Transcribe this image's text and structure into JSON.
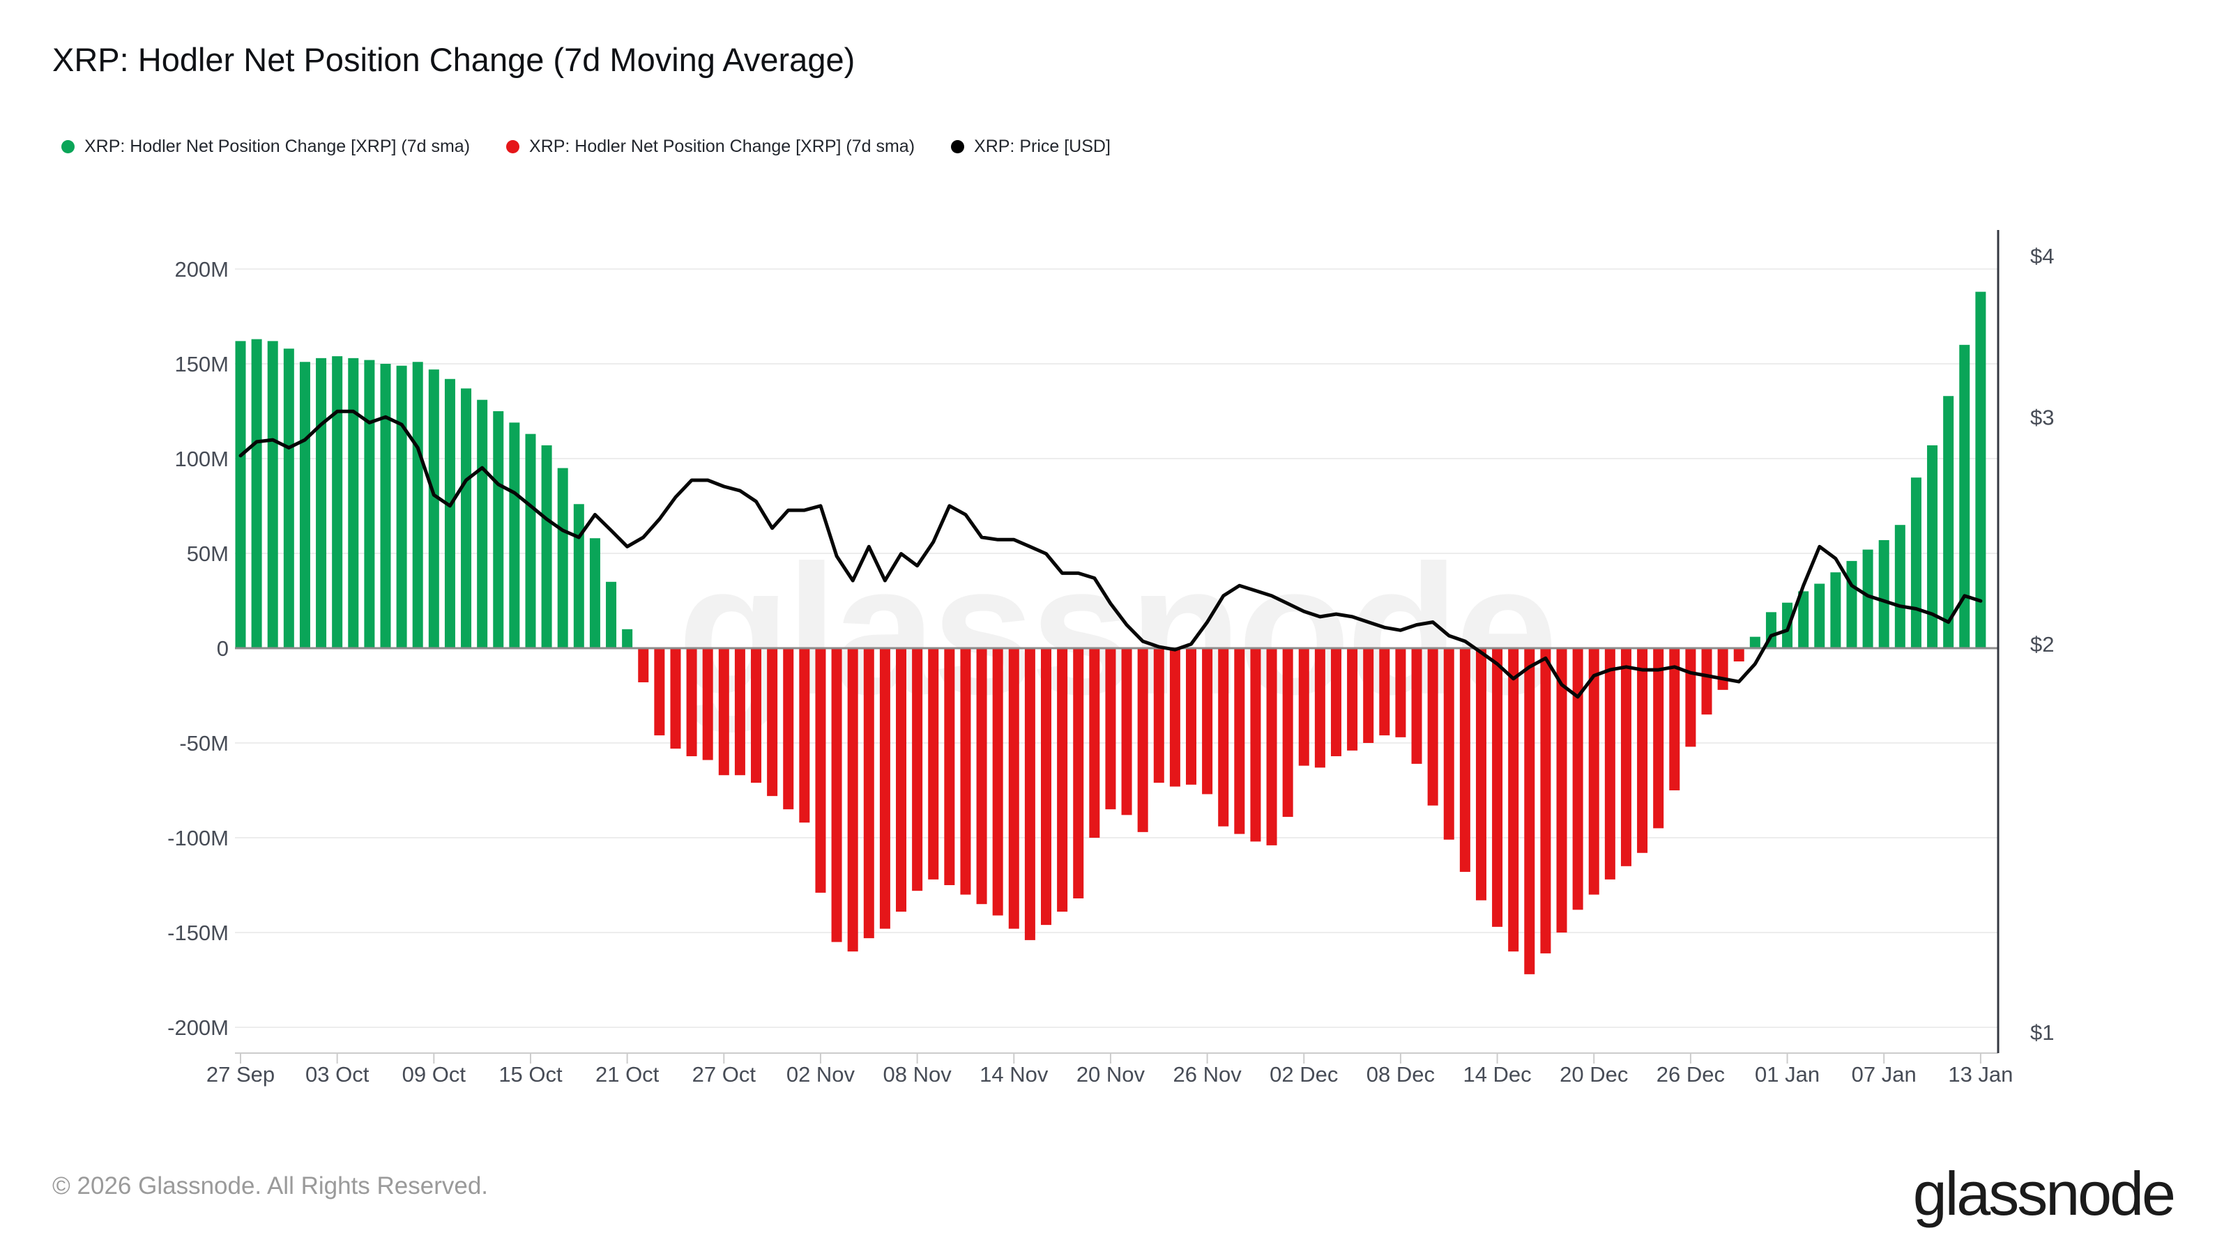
{
  "title": "XRP: Hodler Net Position Change (7d Moving Average)",
  "legend": [
    {
      "label": "XRP: Hodler Net Position Change [XRP] (7d sma)",
      "color": "#0aa558"
    },
    {
      "label": "XRP: Hodler Net Position Change [XRP] (7d sma)",
      "color": "#e51619"
    },
    {
      "label": "XRP: Price [USD]",
      "color": "#000000"
    }
  ],
  "watermark": "glassnode",
  "footer": {
    "copyright": "© 2026 Glassnode. All Rights Reserved.",
    "logo": "glassnode"
  },
  "chart_data": {
    "type": "bar+line",
    "title": "XRP: Hodler Net Position Change (7d Moving Average)",
    "x": [
      "27 Sep",
      "28 Sep",
      "29 Sep",
      "30 Sep",
      "01 Oct",
      "02 Oct",
      "03 Oct",
      "04 Oct",
      "05 Oct",
      "06 Oct",
      "07 Oct",
      "08 Oct",
      "09 Oct",
      "10 Oct",
      "11 Oct",
      "12 Oct",
      "13 Oct",
      "14 Oct",
      "15 Oct",
      "16 Oct",
      "17 Oct",
      "18 Oct",
      "19 Oct",
      "20 Oct",
      "21 Oct",
      "22 Oct",
      "23 Oct",
      "24 Oct",
      "25 Oct",
      "26 Oct",
      "27 Oct",
      "28 Oct",
      "29 Oct",
      "30 Oct",
      "31 Oct",
      "01 Nov",
      "02 Nov",
      "03 Nov",
      "04 Nov",
      "05 Nov",
      "06 Nov",
      "07 Nov",
      "08 Nov",
      "09 Nov",
      "10 Nov",
      "11 Nov",
      "12 Nov",
      "13 Nov",
      "14 Nov",
      "15 Nov",
      "16 Nov",
      "17 Nov",
      "18 Nov",
      "19 Nov",
      "20 Nov",
      "21 Nov",
      "22 Nov",
      "23 Nov",
      "24 Nov",
      "25 Nov",
      "26 Nov",
      "27 Nov",
      "28 Nov",
      "29 Nov",
      "30 Nov",
      "01 Dec",
      "02 Dec",
      "03 Dec",
      "04 Dec",
      "05 Dec",
      "06 Dec",
      "07 Dec",
      "08 Dec",
      "09 Dec",
      "10 Dec",
      "11 Dec",
      "12 Dec",
      "13 Dec",
      "14 Dec",
      "15 Dec",
      "16 Dec",
      "17 Dec",
      "18 Dec",
      "19 Dec",
      "20 Dec",
      "21 Dec",
      "22 Dec",
      "23 Dec",
      "24 Dec",
      "25 Dec",
      "26 Dec",
      "27 Dec",
      "28 Dec",
      "29 Dec",
      "30 Dec",
      "31 Dec",
      "01 Jan",
      "02 Jan",
      "03 Jan",
      "04 Jan",
      "05 Jan",
      "06 Jan",
      "07 Jan",
      "08 Jan",
      "09 Jan",
      "10 Jan",
      "11 Jan",
      "12 Jan",
      "13 Jan"
    ],
    "series": [
      {
        "name": "XRP: Hodler Net Position Change [XRP] (7d sma)",
        "type": "bar",
        "unit": "M",
        "values": [
          162,
          163,
          162,
          158,
          151,
          153,
          154,
          153,
          152,
          150,
          149,
          151,
          147,
          142,
          137,
          131,
          125,
          119,
          113,
          107,
          95,
          76,
          58,
          35,
          10,
          -18,
          -46,
          -53,
          -57,
          -59,
          -67,
          -67,
          -71,
          -78,
          -85,
          -92,
          -129,
          -155,
          -160,
          -153,
          -148,
          -139,
          -128,
          -122,
          -125,
          -130,
          -135,
          -141,
          -148,
          -154,
          -146,
          -139,
          -132,
          -100,
          -85,
          -88,
          -97,
          -71,
          -73,
          -72,
          -77,
          -94,
          -98,
          -102,
          -104,
          -89,
          -62,
          -63,
          -57,
          -54,
          -50,
          -46,
          -47,
          -61,
          -83,
          -101,
          -118,
          -133,
          -147,
          -160,
          -172,
          -161,
          -150,
          -138,
          -130,
          -122,
          -115,
          -108,
          -95,
          -75,
          -52,
          -35,
          -22,
          -7,
          6,
          19,
          24,
          30,
          34,
          40,
          46,
          52,
          57,
          65,
          90,
          107,
          133,
          160,
          188
        ]
      },
      {
        "name": "XRP: Price [USD]",
        "type": "line",
        "unit": "USD",
        "values": [
          2.8,
          2.87,
          2.88,
          2.84,
          2.88,
          2.96,
          3.03,
          3.03,
          2.97,
          3.0,
          2.96,
          2.84,
          2.61,
          2.56,
          2.68,
          2.74,
          2.66,
          2.62,
          2.56,
          2.5,
          2.45,
          2.42,
          2.52,
          2.45,
          2.38,
          2.42,
          2.5,
          2.6,
          2.68,
          2.68,
          2.65,
          2.63,
          2.58,
          2.46,
          2.54,
          2.54,
          2.56,
          2.34,
          2.24,
          2.38,
          2.24,
          2.35,
          2.3,
          2.4,
          2.56,
          2.52,
          2.42,
          2.41,
          2.41,
          2.38,
          2.35,
          2.27,
          2.27,
          2.25,
          2.15,
          2.07,
          2.01,
          1.99,
          1.98,
          2.0,
          2.08,
          2.18,
          2.22,
          2.2,
          2.18,
          2.15,
          2.12,
          2.1,
          2.11,
          2.1,
          2.08,
          2.06,
          2.05,
          2.07,
          2.08,
          2.03,
          2.01,
          1.97,
          1.93,
          1.88,
          1.92,
          1.95,
          1.86,
          1.82,
          1.89,
          1.91,
          1.92,
          1.91,
          1.91,
          1.92,
          1.9,
          1.89,
          1.88,
          1.87,
          1.93,
          2.03,
          2.05,
          2.22,
          2.38,
          2.33,
          2.22,
          2.18,
          2.16,
          2.14,
          2.13,
          2.11,
          2.08,
          2.18,
          2.16
        ]
      }
    ],
    "x_ticks": [
      "27 Sep",
      "03 Oct",
      "09 Oct",
      "15 Oct",
      "21 Oct",
      "27 Oct",
      "02 Nov",
      "08 Nov",
      "14 Nov",
      "20 Nov",
      "26 Nov",
      "02 Dec",
      "08 Dec",
      "14 Dec",
      "20 Dec",
      "26 Dec",
      "01 Jan",
      "07 Jan",
      "13 Jan"
    ],
    "left_axis": {
      "labels": [
        "200M",
        "150M",
        "100M",
        "50M",
        "0",
        "-50M",
        "-100M",
        "-150M",
        "-200M"
      ],
      "values": [
        200,
        150,
        100,
        50,
        0,
        -50,
        -100,
        -150,
        -200
      ],
      "ylim": [
        -200,
        200
      ]
    },
    "right_axis": {
      "labels": [
        "$4",
        "$3",
        "$2",
        "$1"
      ],
      "values": [
        4,
        3,
        2,
        1
      ],
      "scale": "log",
      "ylim": [
        1,
        4
      ]
    },
    "grid": "horizontal",
    "legend_position": "top-left",
    "colors": {
      "positive_bar": "#0aa558",
      "negative_bar": "#e51619",
      "price_line": "#060606",
      "gridline": "#ededed",
      "zero_line": "#8c8c8c",
      "axis_line": "#343841",
      "tick_label": "#474c56",
      "watermark": "rgba(0,0,0,0.05)"
    }
  }
}
